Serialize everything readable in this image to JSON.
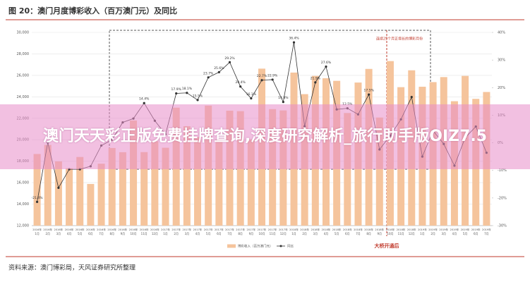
{
  "chart_data": {
    "type": "bar_line",
    "title": "图 20：澳门月度博彩收入（百万澳门元）及同比",
    "source": "资料来源：澳门博彩局，天风证券研究所整理",
    "banner": "澳门天天彩正版免费挂牌查询,深度研究解析_旅行助手版OIZ7.5",
    "annotation_box": "连续25个月正增长的博彩月份",
    "annotation_bridge": "大桥开通后",
    "categories": [
      "1月",
      "2月",
      "3月",
      "4月",
      "5月",
      "6月",
      "7月",
      "8月",
      "9月",
      "10月",
      "11月",
      "12月",
      "1月",
      "2月",
      "3月",
      "4月",
      "5月",
      "6月",
      "7月",
      "8月",
      "9月",
      "10月",
      "11月",
      "12月",
      "1月",
      "2月",
      "3月",
      "4月",
      "5月",
      "6月",
      "7月",
      "8月",
      "9月",
      "10月",
      "11月",
      "12月",
      "1月",
      "2月",
      "3月",
      "4月",
      "5月",
      "6月",
      "7月"
    ],
    "category_years": [
      "2016年",
      "2016年",
      "2016年",
      "2016年",
      "2016年",
      "2016年",
      "2016年",
      "2016年",
      "2016年",
      "2016年",
      "2016年",
      "2016年",
      "2017年",
      "2017年",
      "2017年",
      "2017年",
      "2017年",
      "2017年",
      "2017年",
      "2017年",
      "2017年",
      "2017年",
      "2017年",
      "2017年",
      "2018年",
      "2018年",
      "2018年",
      "2018年",
      "2018年",
      "2018年",
      "2018年",
      "2018年",
      "2018年",
      "2018年",
      "2018年",
      "2018年",
      "2019年",
      "2019年",
      "2019年",
      "2019年",
      "2019年",
      "2019年",
      "2019年"
    ],
    "series": [
      {
        "name": "博彩收入（百万澳门元）",
        "color": "#f5c49c",
        "values": [
          18673,
          19516,
          17981,
          17340,
          18394,
          15880,
          17768,
          19230,
          18840,
          21793,
          18848,
          19855,
          19255,
          22988,
          21259,
          20251,
          23180,
          19994,
          22706,
          22664,
          20030,
          26625,
          22856,
          22732,
          26260,
          24250,
          25950,
          25730,
          25490,
          22490,
          25330,
          26600,
          22070,
          27330,
          24900,
          26470,
          24940,
          25370,
          25840,
          23590,
          25950,
          23810,
          24450
        ]
      },
      {
        "name": "同比",
        "color": "#333333",
        "axis": "y2",
        "values": [
          -21.4,
          0.1,
          -16.3,
          -9.6,
          -9.6,
          -8.5,
          -1.0,
          1.1,
          7.4,
          8.8,
          14.4,
          8.0,
          3.1,
          17.9,
          18.1,
          15.5,
          23.7,
          25.6,
          29.2,
          20.4,
          16.1,
          22.7,
          22.9,
          14.8,
          36.4,
          6.0,
          21.9,
          27.6,
          12.1,
          12.5,
          10.3,
          17.5,
          -2.4,
          2.6,
          8.5,
          16.6,
          -5.0,
          4.4,
          -0.4,
          -8.3,
          1.8,
          5.9,
          -3.6
        ],
        "value_labels": [
          "-21.4%",
          null,
          null,
          null,
          null,
          null,
          null,
          null,
          null,
          null,
          "14.4%",
          null,
          null,
          "17.9%",
          "18.1%",
          "15.5%",
          "23.7%",
          "25.6%",
          "29.2%",
          "20.4%",
          "16.1%",
          "22.7%",
          "22.9%",
          "14.8%",
          "36.4%",
          null,
          "21.9%",
          "27.6%",
          null,
          "12.5%",
          null,
          "17.5%",
          null,
          null,
          null,
          null,
          null,
          null,
          null,
          null,
          null,
          null,
          null
        ]
      }
    ],
    "ylim": [
      12000,
      30000
    ],
    "yticks": [
      {
        "value": 12000,
        "label": "12,000"
      },
      {
        "value": 14000,
        "label": "14,000"
      },
      {
        "value": 16000,
        "label": "16,000"
      },
      {
        "value": 18000,
        "label": "18,000"
      },
      {
        "value": 20000,
        "label": "20,000"
      },
      {
        "value": 22000,
        "label": "22,000"
      },
      {
        "value": 24000,
        "label": "24,000"
      },
      {
        "value": 26000,
        "label": "26,000"
      },
      {
        "value": 28000,
        "label": "28,000"
      },
      {
        "value": 30000,
        "label": "30,000"
      }
    ],
    "y2lim": [
      -30,
      40
    ],
    "y2ticks": [
      {
        "value": -30,
        "label": "-30%"
      },
      {
        "value": -20,
        "label": "-20%"
      },
      {
        "value": -10,
        "label": "-10%"
      },
      {
        "value": 0,
        "label": "0%"
      },
      {
        "value": 10,
        "label": "10%"
      },
      {
        "value": 20,
        "label": "20%"
      },
      {
        "value": 30,
        "label": "30%"
      },
      {
        "value": 40,
        "label": "40%"
      }
    ],
    "grid": true
  }
}
